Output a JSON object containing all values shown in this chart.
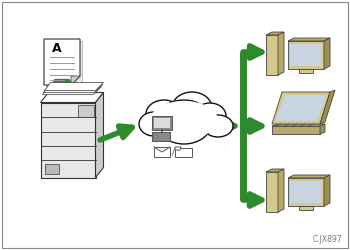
{
  "bg_color": "#ffffff",
  "border_color": "#888888",
  "arrow_color": "#2d8a2d",
  "scanner_body": "#e0e0e0",
  "scanner_outline": "#333333",
  "cloud_fill": "#ffffff",
  "cloud_outline": "#111111",
  "computer_tan": "#d4c98a",
  "computer_tan_dark": "#b8aa6a",
  "computer_tan_darker": "#a09050",
  "computer_screen": "#c8d4e0",
  "computer_outline": "#444444",
  "icon_gray": "#888888",
  "caption": "C.JX897",
  "caption_fontsize": 5.5,
  "fig_width": 3.5,
  "fig_height": 2.5,
  "dpi": 100
}
